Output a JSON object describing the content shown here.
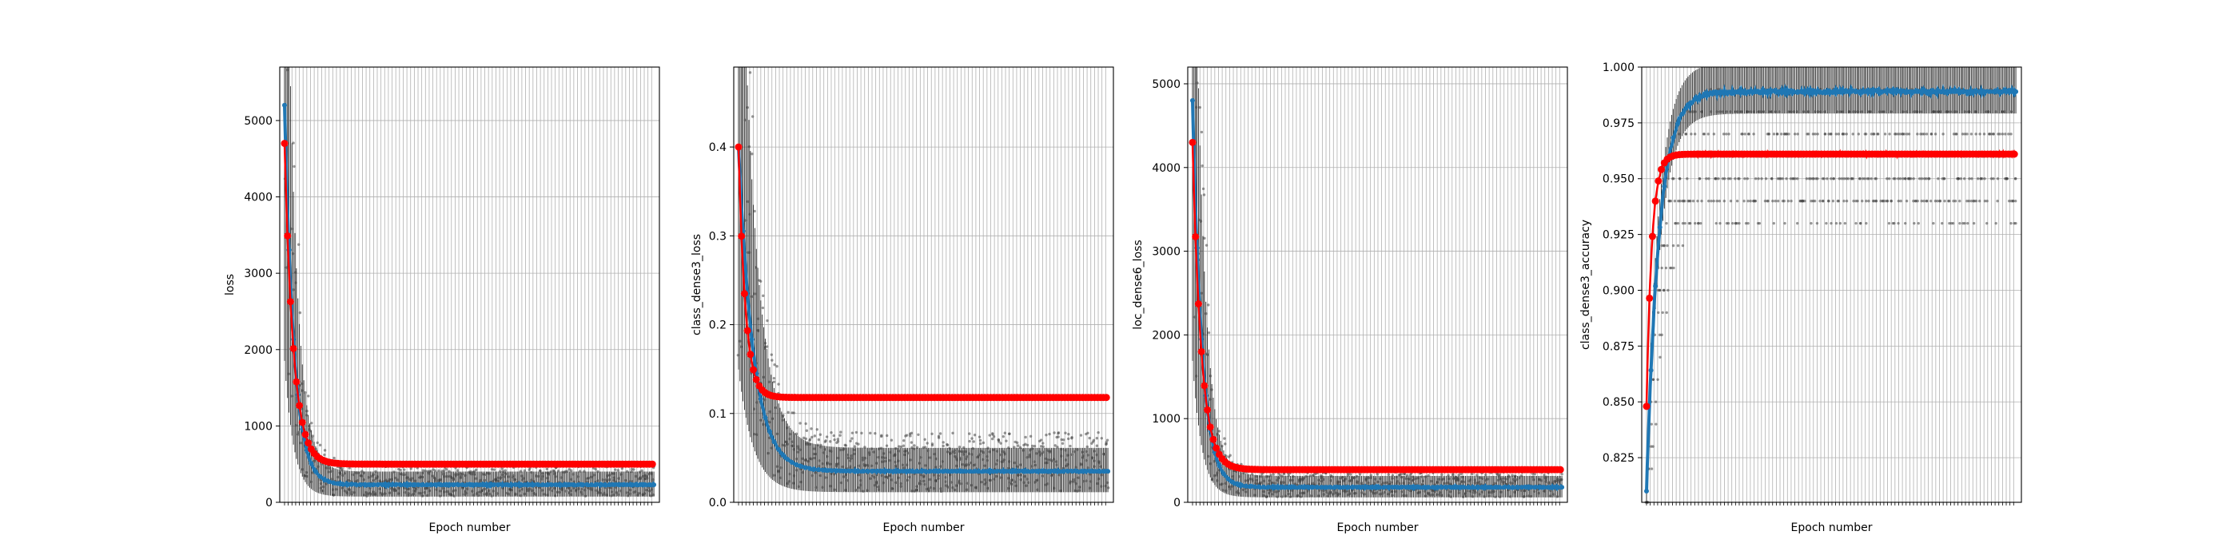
{
  "chart_data": [
    {
      "type": "scatter",
      "xlabel": "Epoch number",
      "ylabel": "loss",
      "ylim": [
        0,
        5700
      ],
      "yticks": [
        0,
        1000,
        2000,
        3000,
        4000,
        5000
      ],
      "ytick_labels": [
        "0",
        "1000",
        "2000",
        "3000",
        "4000",
        "5000"
      ],
      "epochs": 500,
      "grid": true,
      "series": [
        {
          "role": "batch-scatter",
          "color": "#404040",
          "curve": {
            "start": 5700,
            "end": 230,
            "decay": 0.08
          }
        },
        {
          "role": "blue-line",
          "color": "#1f77b4",
          "curve": {
            "start": 5200,
            "end": 230,
            "decay": 0.08
          }
        },
        {
          "role": "red-line",
          "color": "#ff0000",
          "curve": {
            "start": 4700,
            "end": 500,
            "decay": 0.085
          }
        }
      ]
    },
    {
      "type": "scatter",
      "xlabel": "Epoch number",
      "ylabel": "class_dense3_loss",
      "ylim": [
        0,
        0.49
      ],
      "yticks": [
        0.0,
        0.1,
        0.2,
        0.3,
        0.4
      ],
      "ytick_labels": [
        "0.0",
        "0.1",
        "0.2",
        "0.3",
        "0.4"
      ],
      "epochs": 500,
      "grid": true,
      "series": [
        {
          "role": "batch-scatter",
          "color": "#404040",
          "curve": {
            "start": 0.46,
            "end": 0.035,
            "decay": 0.05
          }
        },
        {
          "role": "blue-line",
          "color": "#1f77b4",
          "curve": {
            "start": 0.4,
            "end": 0.035,
            "decay": 0.05
          }
        },
        {
          "role": "red-line",
          "color": "#ff0000",
          "curve": {
            "start": 0.4,
            "end": 0.118,
            "decay": 0.11
          }
        }
      ]
    },
    {
      "type": "scatter",
      "xlabel": "Epoch number",
      "ylabel": "loc_dense6_loss",
      "ylim": [
        0,
        5200
      ],
      "yticks": [
        0,
        1000,
        2000,
        3000,
        4000,
        5000
      ],
      "ytick_labels": [
        "0",
        "1000",
        "2000",
        "3000",
        "4000",
        "5000"
      ],
      "epochs": 500,
      "grid": true,
      "series": [
        {
          "role": "batch-scatter",
          "color": "#404040",
          "curve": {
            "start": 5200,
            "end": 180,
            "decay": 0.08
          }
        },
        {
          "role": "blue-line",
          "color": "#1f77b4",
          "curve": {
            "start": 4800,
            "end": 180,
            "decay": 0.08
          }
        },
        {
          "role": "red-line",
          "color": "#ff0000",
          "curve": {
            "start": 4300,
            "end": 390,
            "decay": 0.085
          }
        }
      ]
    },
    {
      "type": "scatter",
      "xlabel": "Epoch number",
      "ylabel": "class_dense3_accuracy",
      "ylim": [
        0.805,
        1.0
      ],
      "yticks": [
        0.825,
        0.85,
        0.875,
        0.9,
        0.925,
        0.95,
        0.975,
        1.0
      ],
      "ytick_labels": [
        "0.825",
        "0.850",
        "0.875",
        "0.900",
        "0.925",
        "0.950",
        "0.975",
        "1.000"
      ],
      "epochs": 500,
      "grid": true,
      "series": [
        {
          "role": "batch-scatter",
          "color": "#404040",
          "curve": {
            "start": 0.81,
            "end": 0.99,
            "decay": 0.06
          }
        },
        {
          "role": "blue-line",
          "color": "#1f77b4",
          "curve": {
            "start": 0.81,
            "end": 0.989,
            "decay": 0.06
          }
        },
        {
          "role": "red-line",
          "color": "#ff0000",
          "curve": {
            "start": 0.848,
            "end": 0.961,
            "decay": 0.14
          }
        }
      ]
    }
  ]
}
